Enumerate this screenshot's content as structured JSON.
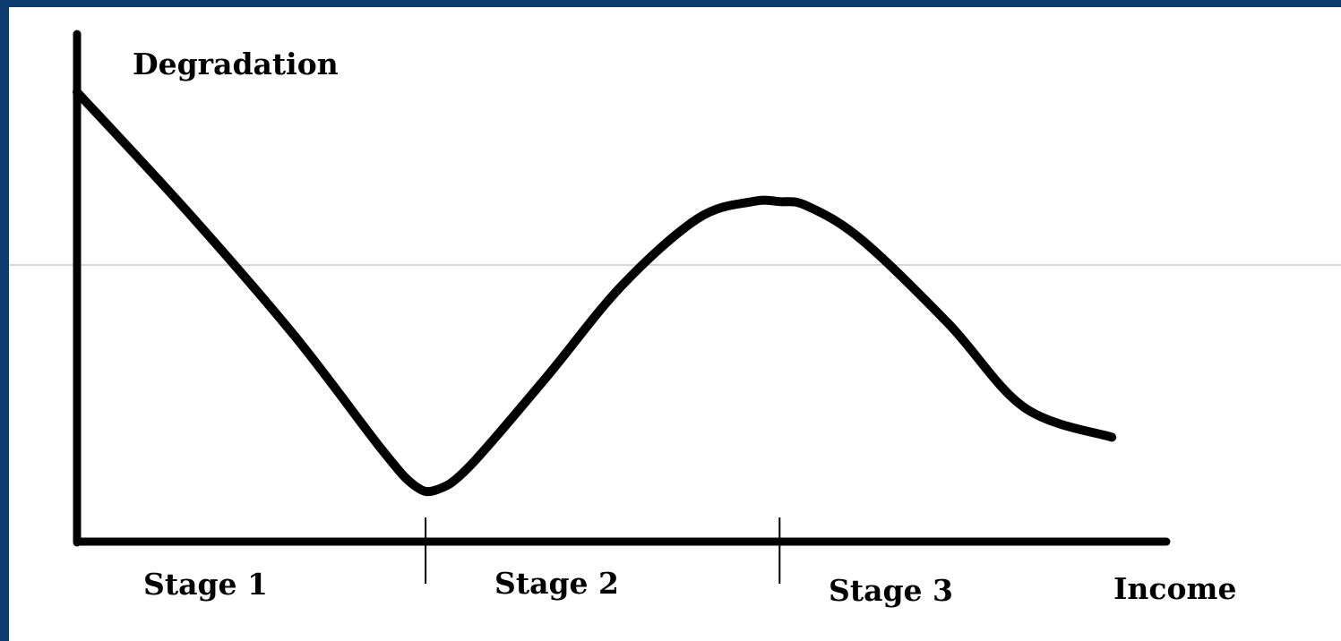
{
  "chart_data": {
    "type": "line",
    "title": "",
    "ylabel": "Degradation",
    "xlabel": "Income",
    "stage_labels": [
      "Stage 1",
      "Stage 2",
      "Stage 3"
    ],
    "stage_boundaries": [
      0.32,
      0.645
    ],
    "xlim": [
      0,
      1
    ],
    "ylim": [
      0,
      1
    ],
    "grid": false,
    "legend": "none",
    "series": [
      {
        "x": [
          0,
          0.1,
          0.2,
          0.28,
          0.31,
          0.33,
          0.36,
          0.43,
          0.5,
          0.57,
          0.62,
          0.645,
          0.67,
          0.72,
          0.8,
          0.87,
          0.95
        ],
        "values": [
          1.0,
          0.72,
          0.42,
          0.15,
          0.065,
          0.055,
          0.11,
          0.32,
          0.54,
          0.7,
          0.74,
          0.74,
          0.73,
          0.65,
          0.45,
          0.25,
          0.18
        ]
      }
    ],
    "colors": {
      "line": "#000000",
      "background": "#ffffff",
      "border": "#0d3c6e",
      "guide": "#9fb4c2"
    }
  }
}
